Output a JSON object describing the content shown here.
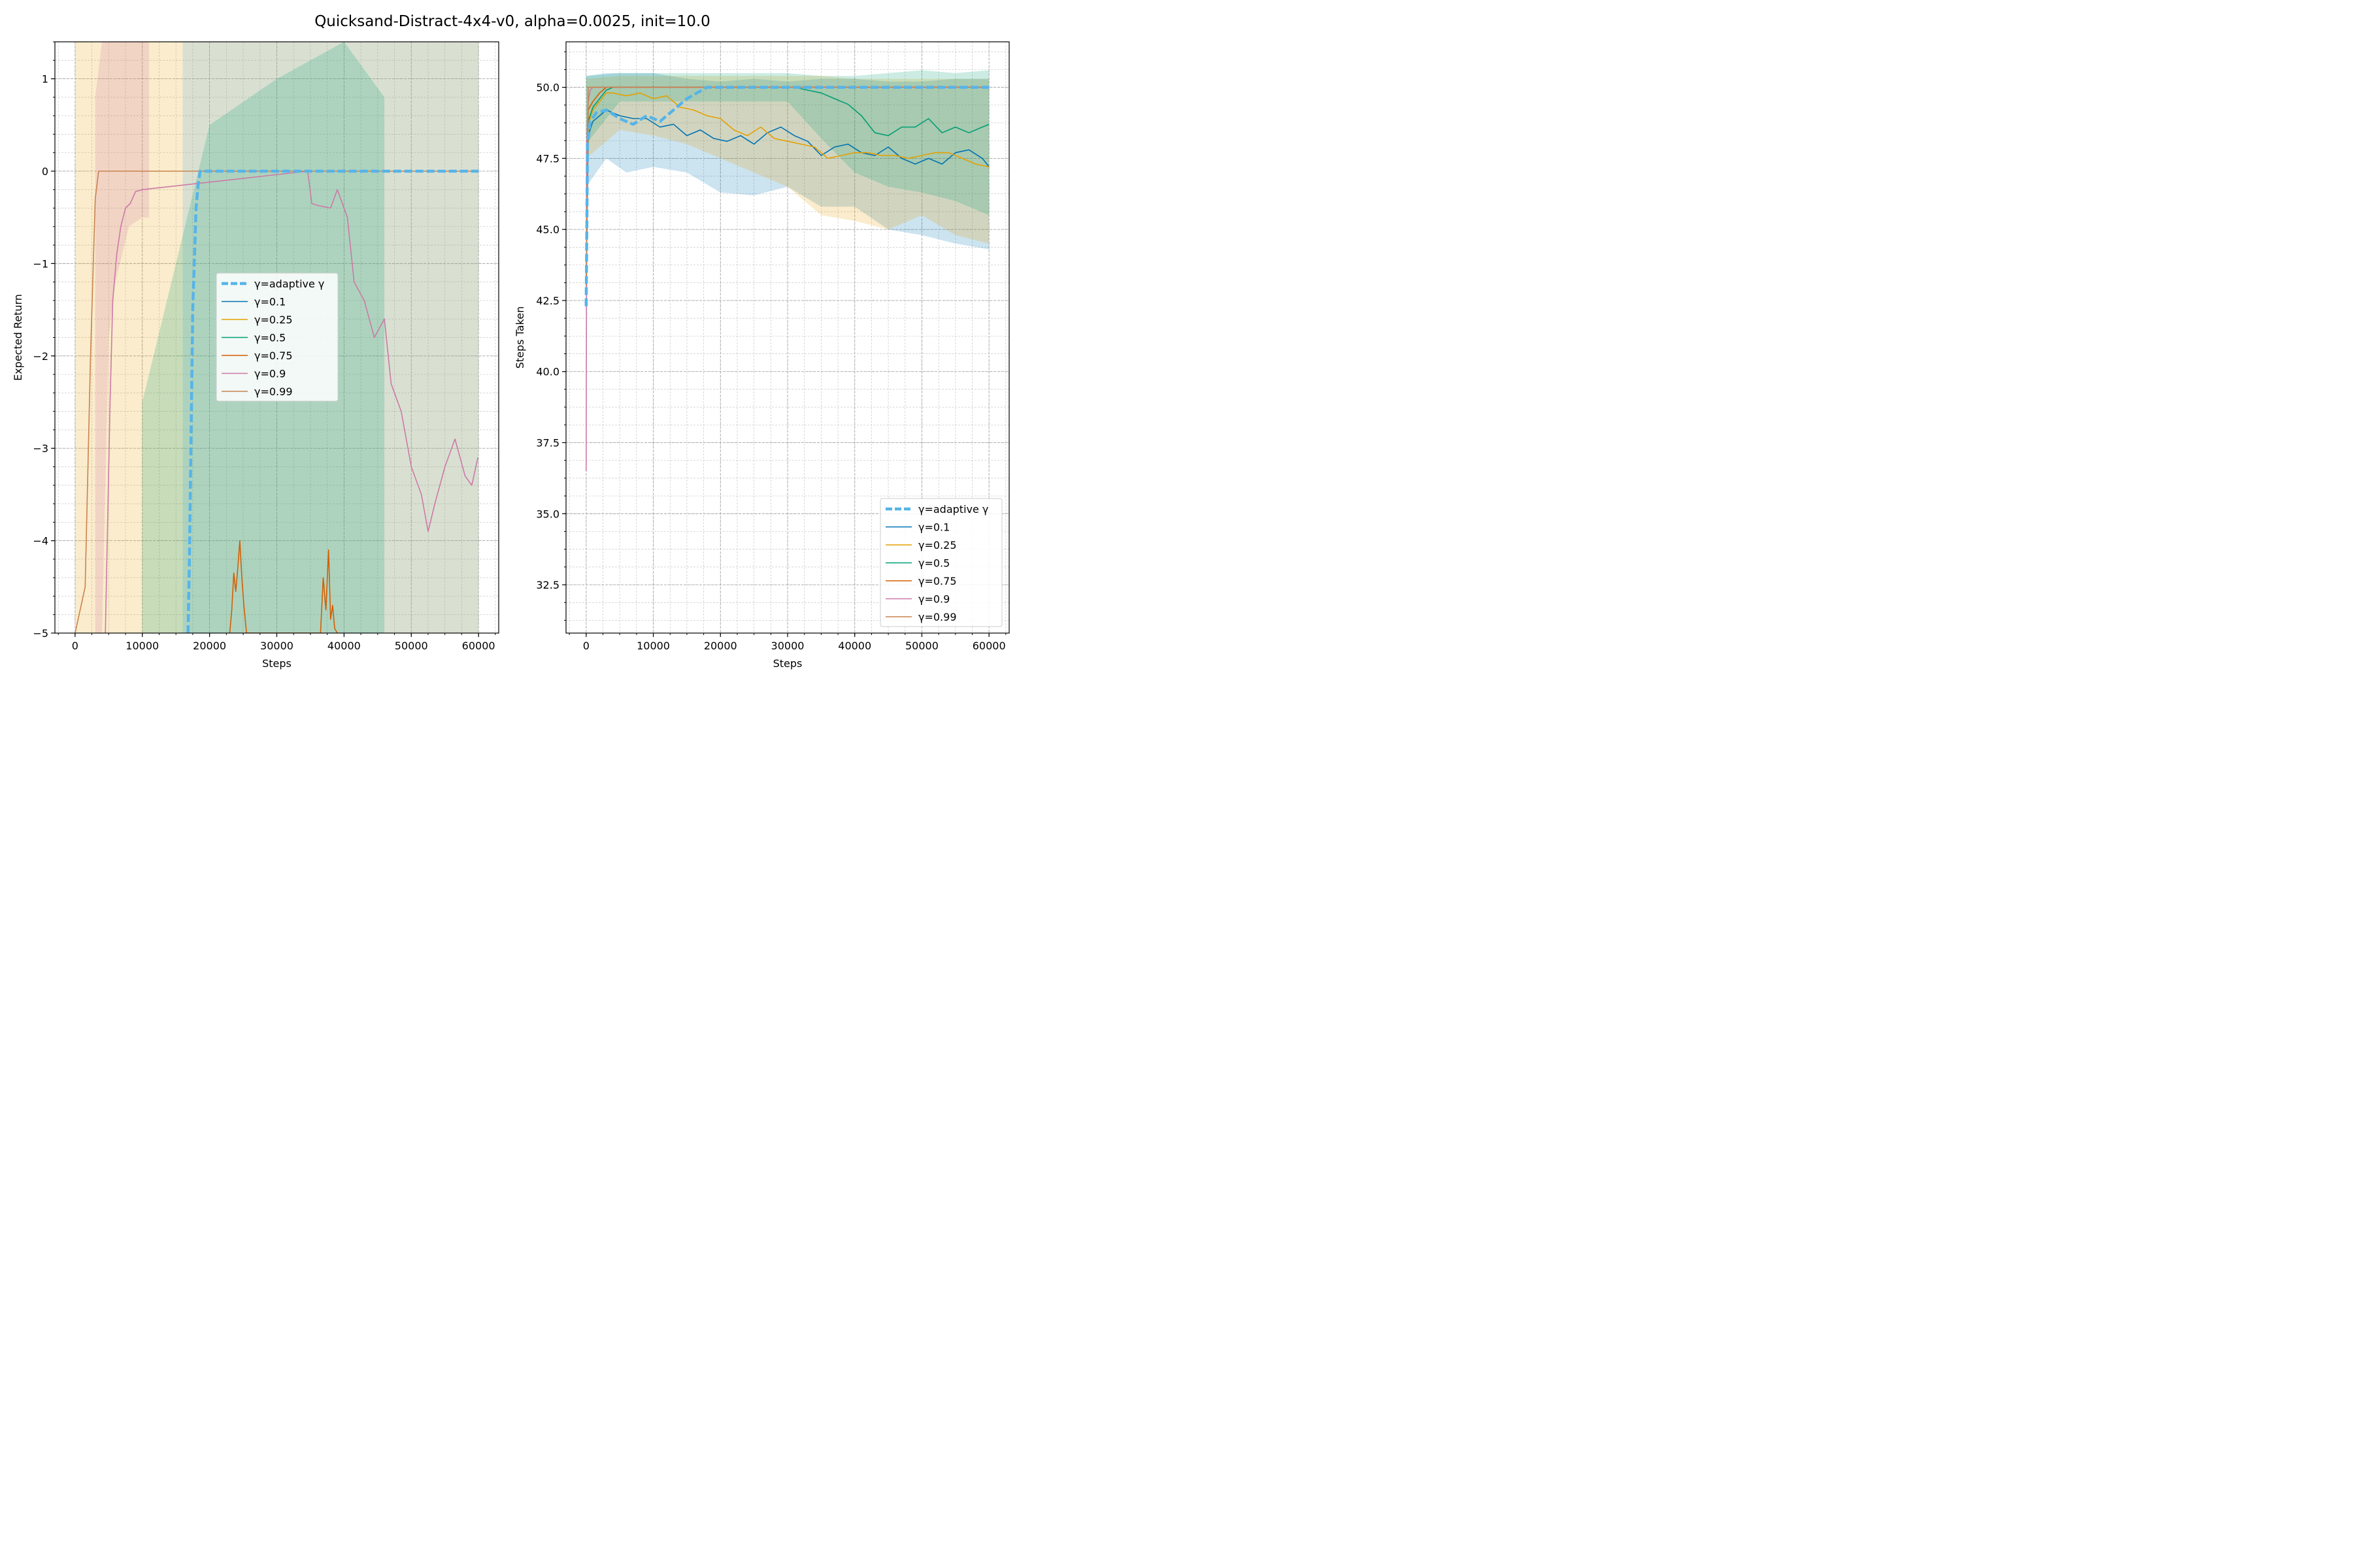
{
  "figure_title": "Quicksand-Distract-4x4-v0, alpha=0.0025, init=10.0",
  "colors": {
    "adaptive": "#56b4e9",
    "g01": "#0072b2",
    "g025": "#e69f00",
    "g05": "#009e73",
    "g075": "#d55e00",
    "g09": "#cc79a7",
    "g099": "#c8834f"
  },
  "chart_data": [
    {
      "type": "line",
      "title": "",
      "xlabel": "Steps",
      "ylabel": "Expected Return",
      "xlim": [
        -3000,
        63000
      ],
      "ylim": [
        -5,
        1.4
      ],
      "xticks": [
        0,
        10000,
        20000,
        30000,
        40000,
        50000,
        60000
      ],
      "xtick_labels": [
        "0",
        "10000",
        "20000",
        "30000",
        "40000",
        "50000",
        "60000"
      ],
      "yticks": [
        -5,
        -4,
        -3,
        -2,
        -1,
        0,
        1
      ],
      "ytick_labels": [
        "−5",
        "−4",
        "−3",
        "−2",
        "−1",
        "0",
        "1"
      ],
      "grid": true,
      "legend": "center",
      "series": [
        {
          "name": "γ=adaptive γ",
          "color_key": "adaptive",
          "dashed": true,
          "x": [
            16800,
            17000,
            17500,
            18000,
            18300,
            18600,
            19000,
            60000
          ],
          "y": [
            -5,
            -4.2,
            -1.5,
            -0.4,
            -0.15,
            0,
            0,
            0
          ]
        },
        {
          "name": "γ=0.1",
          "color_key": "g01",
          "x": [],
          "y": []
        },
        {
          "name": "γ=0.25",
          "color_key": "g025",
          "x": [],
          "y": []
        },
        {
          "name": "γ=0.5",
          "color_key": "g05",
          "x": [],
          "y": []
        },
        {
          "name": "γ=0.75",
          "color_key": "g075",
          "x": [
            23000,
            23300,
            23600,
            23900,
            24200,
            24500,
            24800,
            25100,
            25500,
            36500,
            36900,
            37300,
            37700,
            38000,
            38300,
            38600,
            39000
          ],
          "y": [
            -5,
            -4.75,
            -4.35,
            -4.55,
            -4.3,
            -4.0,
            -4.4,
            -4.7,
            -5,
            -5,
            -4.4,
            -4.75,
            -4.1,
            -4.85,
            -4.7,
            -4.95,
            -5
          ]
        },
        {
          "name": "γ=0.9",
          "color_key": "g09",
          "x": [
            4500,
            5200,
            5600,
            6200,
            6800,
            7500,
            8200,
            9000,
            10000,
            11200,
            34600,
            35200,
            36000,
            38000,
            39000,
            40500,
            41500,
            43000,
            44500,
            46000,
            47000,
            48500,
            50000,
            51500,
            52500,
            53500,
            55000,
            56500,
            58000,
            59000,
            59900
          ],
          "y": [
            -5,
            -2.5,
            -1.4,
            -0.9,
            -0.6,
            -0.4,
            -0.35,
            -0.22,
            -0.2,
            -0.19,
            0,
            -0.35,
            -0.37,
            -0.4,
            -0.2,
            -0.5,
            -1.2,
            -1.4,
            -1.8,
            -1.6,
            -2.3,
            -2.6,
            -3.2,
            -3.5,
            -3.9,
            -3.6,
            -3.2,
            -2.9,
            -3.3,
            -3.4,
            -3.1
          ]
        },
        {
          "name": "γ=0.99",
          "color_key": "g099",
          "x": [
            0,
            1500,
            2300,
            3000,
            3500,
            60000
          ],
          "y": [
            -5,
            -4.5,
            -2.0,
            -0.3,
            0,
            0
          ]
        }
      ],
      "bands": [
        {
          "color_key": "g025",
          "x": [
            0,
            2000,
            4000,
            6000,
            10000,
            20000,
            30000,
            40000,
            50000,
            60000
          ],
          "lo": [
            -5,
            -5,
            -5,
            -5,
            -5,
            -5,
            -5,
            -5,
            -5,
            -5
          ],
          "hi": [
            1.4,
            1.4,
            1.4,
            1.4,
            1.4,
            1.4,
            1.4,
            1.4,
            1.4,
            1.4
          ]
        },
        {
          "color_key": "g09",
          "x": [
            3000,
            4000,
            5000,
            6000,
            8000,
            10000,
            11000
          ],
          "lo": [
            -5,
            -5,
            -1.8,
            -1.2,
            -0.6,
            -0.5,
            -0.5
          ],
          "hi": [
            0.8,
            1.4,
            1.4,
            1.4,
            1.4,
            1.4,
            1.4
          ]
        },
        {
          "color_key": "adaptive",
          "x": [
            16000,
            20000,
            25000,
            30000,
            40000,
            50000,
            60000
          ],
          "lo": [
            -5,
            -5,
            -5,
            -5,
            -5,
            -5,
            -5
          ],
          "hi": [
            1.4,
            1.4,
            1.4,
            1.4,
            1.4,
            1.4,
            1.4
          ]
        },
        {
          "color_key": "g05",
          "x": [
            10000,
            15000,
            20000,
            30000,
            40000,
            46000
          ],
          "lo": [
            -5,
            -5,
            -5,
            -5,
            -5,
            -5
          ],
          "hi": [
            -2.5,
            -1.0,
            0.5,
            1.0,
            1.4,
            0.8
          ]
        }
      ]
    },
    {
      "type": "line",
      "title": "",
      "xlabel": "Steps",
      "ylabel": "Steps Taken",
      "xlim": [
        -3000,
        63000
      ],
      "ylim": [
        30.8,
        51.6
      ],
      "xticks": [
        0,
        10000,
        20000,
        30000,
        40000,
        50000,
        60000
      ],
      "xtick_labels": [
        "0",
        "10000",
        "20000",
        "30000",
        "40000",
        "50000",
        "60000"
      ],
      "yticks": [
        32.5,
        35.0,
        37.5,
        40.0,
        42.5,
        45.0,
        47.5,
        50.0
      ],
      "ytick_labels": [
        "32.5",
        "35.0",
        "37.5",
        "40.0",
        "42.5",
        "45.0",
        "47.5",
        "50.0"
      ],
      "grid": true,
      "legend": "lower right",
      "series": [
        {
          "name": "γ=adaptive γ",
          "color_key": "adaptive",
          "dashed": true,
          "x": [
            0,
            200,
            600,
            1500,
            3000,
            5000,
            7000,
            9000,
            11000,
            13000,
            15000,
            16500,
            18000,
            19000,
            60000
          ],
          "y": [
            42.3,
            48.0,
            48.8,
            49.1,
            49.2,
            48.9,
            48.7,
            49.0,
            48.8,
            49.2,
            49.6,
            49.8,
            50.0,
            50.0,
            50.0
          ]
        },
        {
          "name": "γ=0.1",
          "color_key": "g01",
          "x": [
            0,
            300,
            1000,
            2000,
            3000,
            4000,
            5000,
            7000,
            9000,
            11000,
            13000,
            15000,
            17000,
            19000,
            21000,
            23000,
            25000,
            27000,
            29000,
            31000,
            33000,
            35000,
            37000,
            39000,
            41000,
            43000,
            45000,
            47000,
            49000,
            51000,
            53000,
            55000,
            57000,
            59000,
            60000
          ],
          "y": [
            43.0,
            48.3,
            48.8,
            49.0,
            49.2,
            49.1,
            49.0,
            48.9,
            48.9,
            48.6,
            48.7,
            48.3,
            48.5,
            48.2,
            48.1,
            48.3,
            48.0,
            48.4,
            48.6,
            48.3,
            48.1,
            47.6,
            47.9,
            48.0,
            47.7,
            47.6,
            47.9,
            47.5,
            47.3,
            47.5,
            47.3,
            47.7,
            47.8,
            47.5,
            47.2
          ]
        },
        {
          "name": "γ=0.25",
          "color_key": "g025",
          "x": [
            0,
            300,
            1000,
            2000,
            3000,
            4000,
            6000,
            8000,
            10000,
            12000,
            14000,
            16000,
            18000,
            20000,
            22000,
            24000,
            26000,
            28000,
            30000,
            32000,
            34000,
            36000,
            38000,
            40000,
            42000,
            44000,
            46000,
            48000,
            50000,
            52000,
            54000,
            56000,
            58000,
            60000
          ],
          "y": [
            43.0,
            48.7,
            49.2,
            49.5,
            49.8,
            49.8,
            49.7,
            49.8,
            49.6,
            49.7,
            49.3,
            49.2,
            49.0,
            48.9,
            48.5,
            48.3,
            48.6,
            48.2,
            48.1,
            48.0,
            47.9,
            47.5,
            47.6,
            47.7,
            47.7,
            47.6,
            47.6,
            47.5,
            47.6,
            47.7,
            47.7,
            47.5,
            47.3,
            47.2
          ]
        },
        {
          "name": "γ=0.5",
          "color_key": "g05",
          "x": [
            0,
            300,
            1000,
            2000,
            3000,
            4000,
            31000,
            33000,
            35000,
            37000,
            39000,
            41000,
            43000,
            45000,
            47000,
            49000,
            51000,
            53000,
            55000,
            57000,
            59000,
            60000
          ],
          "y": [
            43.0,
            48.8,
            49.3,
            49.6,
            49.9,
            50.0,
            50.0,
            49.9,
            49.8,
            49.6,
            49.4,
            49.0,
            48.4,
            48.3,
            48.6,
            48.6,
            48.9,
            48.4,
            48.6,
            48.4,
            48.6,
            48.7
          ]
        },
        {
          "name": "γ=0.75",
          "color_key": "g075",
          "x": [
            0,
            300,
            1000,
            2000,
            3000,
            60000
          ],
          "y": [
            43.0,
            49.2,
            49.5,
            49.8,
            50.0,
            50.0
          ]
        },
        {
          "name": "γ=0.9",
          "color_key": "g09",
          "x": [
            0,
            100,
            300,
            600,
            1000,
            60000
          ],
          "y": [
            36.5,
            48.0,
            49.5,
            49.9,
            50.0,
            50.0
          ]
        },
        {
          "name": "γ=0.99",
          "color_key": "g099",
          "x": [
            0,
            300,
            1000,
            60000
          ],
          "y": [
            43.0,
            50.0,
            50.0,
            50.0
          ]
        }
      ],
      "bands": [
        {
          "color_key": "g01",
          "x": [
            0,
            3000,
            6000,
            10000,
            15000,
            20000,
            25000,
            30000,
            35000,
            40000,
            45000,
            50000,
            55000,
            60000
          ],
          "lo": [
            46.5,
            47.5,
            47.0,
            47.2,
            47.0,
            46.3,
            46.2,
            46.5,
            45.8,
            45.8,
            45.0,
            44.8,
            44.5,
            44.3
          ],
          "hi": [
            50.4,
            50.5,
            50.5,
            50.5,
            50.3,
            50.2,
            50.3,
            50.2,
            50.3,
            50.3,
            50.2,
            50.2,
            50.3,
            50.3
          ]
        },
        {
          "color_key": "g025",
          "x": [
            0,
            5000,
            10000,
            15000,
            20000,
            25000,
            30000,
            35000,
            40000,
            45000,
            50000,
            55000,
            60000
          ],
          "lo": [
            47.5,
            48.5,
            48.3,
            48.0,
            47.5,
            47.0,
            46.5,
            45.5,
            45.3,
            45.0,
            45.5,
            44.8,
            44.5
          ],
          "hi": [
            50.3,
            50.4,
            50.4,
            50.4,
            50.4,
            50.4,
            50.4,
            50.4,
            50.3,
            50.3,
            50.3,
            50.3,
            50.3
          ]
        },
        {
          "color_key": "g05",
          "x": [
            0,
            5000,
            30000,
            35000,
            40000,
            45000,
            50000,
            55000,
            60000
          ],
          "lo": [
            48.0,
            49.5,
            49.5,
            48.2,
            47.0,
            46.5,
            46.3,
            46.0,
            45.5
          ],
          "hi": [
            50.4,
            50.5,
            50.5,
            50.4,
            50.4,
            50.5,
            50.6,
            50.5,
            50.6
          ]
        }
      ]
    }
  ]
}
